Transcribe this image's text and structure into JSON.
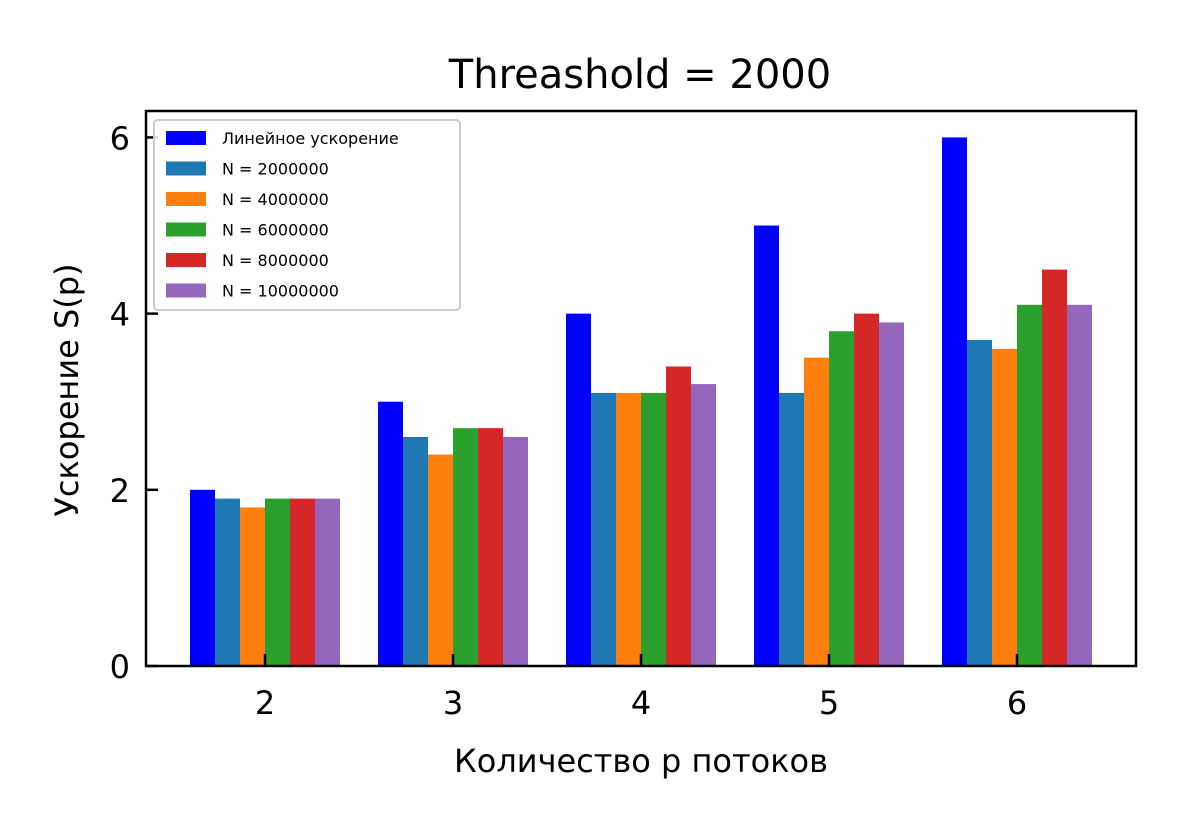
{
  "chart_data": {
    "type": "bar",
    "title": "Threashold = 2000",
    "xlabel": "Количество p потоков",
    "ylabel": "Ускорение S(p)",
    "categories": [
      "2",
      "3",
      "4",
      "5",
      "6"
    ],
    "ylim": [
      0,
      6.3
    ],
    "yticks": [
      "0",
      "2",
      "4",
      "6"
    ],
    "legend_position": "top-left",
    "grid": false,
    "series": [
      {
        "name": "Линейное ускорение",
        "color": "#0000ff",
        "values": [
          2,
          3,
          4,
          5,
          6
        ]
      },
      {
        "name": "N = 2000000",
        "color": "#1f77b4",
        "values": [
          1.9,
          2.6,
          3.1,
          3.1,
          3.7
        ]
      },
      {
        "name": "N = 4000000",
        "color": "#ff7f0e",
        "values": [
          1.8,
          2.4,
          3.1,
          3.5,
          3.6
        ]
      },
      {
        "name": "N = 6000000",
        "color": "#2ca02c",
        "values": [
          1.9,
          2.7,
          3.1,
          3.8,
          4.1
        ]
      },
      {
        "name": "N = 8000000",
        "color": "#d62728",
        "values": [
          1.9,
          2.7,
          3.4,
          4.0,
          4.5
        ]
      },
      {
        "name": "N = 10000000",
        "color": "#9467bd",
        "values": [
          1.9,
          2.6,
          3.2,
          3.9,
          4.1
        ]
      }
    ]
  }
}
